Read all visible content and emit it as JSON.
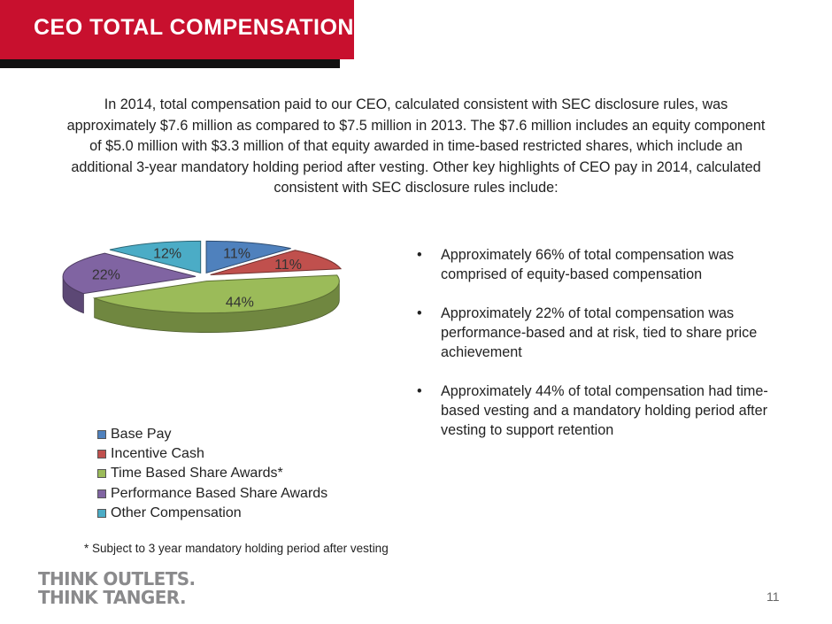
{
  "title": "CEO TOTAL COMPENSATION",
  "intro": "In 2014, total compensation paid to our CEO, calculated consistent with SEC disclosure rules, was approximately $7.6 million as compared to $7.5 million in 2013.  The $7.6 million includes an equity component of $5.0 million with $3.3 million of that equity awarded in time-based restricted shares, which include an additional 3-year mandatory holding period after vesting.  Other key highlights of CEO pay in 2014, calculated consistent with SEC disclosure rules include:",
  "chart_data": {
    "type": "pie",
    "style": "3d-exploded",
    "categories": [
      "Base Pay",
      "Incentive Cash",
      "Time Based Share Awards*",
      "Performance Based Share Awards",
      "Other Compensation"
    ],
    "values": [
      11,
      11,
      44,
      22,
      12
    ],
    "labels": [
      "11%",
      "11%",
      "44%",
      "22%",
      "12%"
    ],
    "colors": [
      "#4f81bd",
      "#c0504d",
      "#9bbb59",
      "#8064a2",
      "#4bacc6"
    ],
    "legend_position": "bottom-left"
  },
  "bullets": [
    "Approximately 66% of total compensation was comprised of equity-based compensation",
    "Approximately 22% of total compensation was performance-based and at risk, tied to share price achievement",
    "Approximately 44% of total compensation had time-based vesting and a mandatory holding period after vesting to support retention"
  ],
  "bullet_symbol": "•",
  "footnote": "* Subject to 3 year mandatory holding period after vesting",
  "brand": {
    "line1": "THINK OUTLETS.",
    "line2": "THINK TANGER."
  },
  "page_number": "11",
  "colors": {
    "title_bar": "#c8102e",
    "title_shadow": "#111111"
  }
}
